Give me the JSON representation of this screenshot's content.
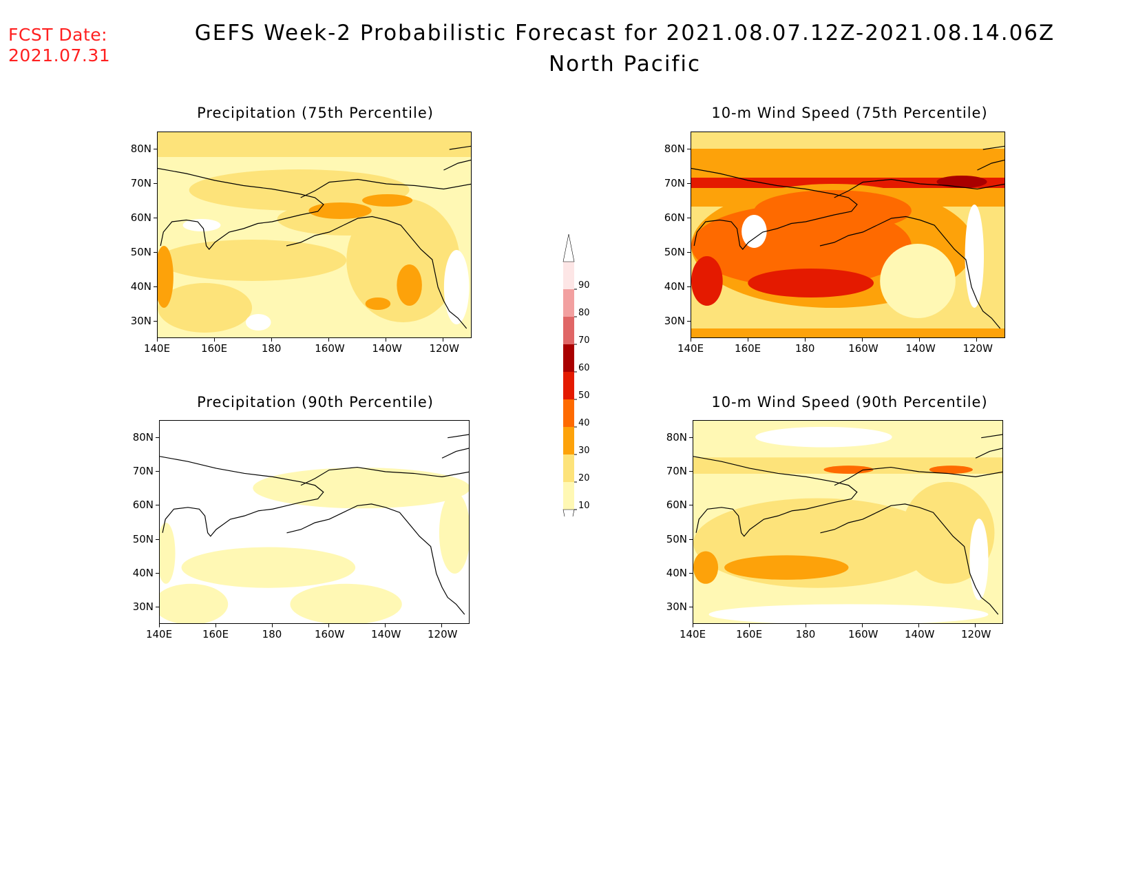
{
  "header": {
    "fcst_label": "FCST Date:",
    "fcst_date": "2021.07.31",
    "title_line1": "GEFS Week-2 Probabilistic Forecast for 2021.08.07.12Z-2021.08.14.06Z",
    "title_line2": "North Pacific"
  },
  "panels": [
    {
      "title": "Precipitation (75th Percentile)",
      "field": "precip75"
    },
    {
      "title": "10-m Wind Speed (75th Percentile)",
      "field": "wind75"
    },
    {
      "title": "Precipitation (90th Percentile)",
      "field": "precip90"
    },
    {
      "title": "10-m Wind Speed (90th Percentile)",
      "field": "wind90"
    }
  ],
  "axes": {
    "lon_labels": [
      "140E",
      "160E",
      "180",
      "160W",
      "140W",
      "120W"
    ],
    "lat_labels": [
      "80N",
      "70N",
      "60N",
      "50N",
      "40N",
      "30N"
    ]
  },
  "colorbar": {
    "levels": [
      "10",
      "20",
      "30",
      "40",
      "50",
      "60",
      "70",
      "80",
      "90"
    ],
    "colors": [
      "#fff8b4",
      "#fde37a",
      "#fda20a",
      "#fe6a00",
      "#e41a00",
      "#a90000",
      "#e06666",
      "#f2a0a0",
      "#fde6e6"
    ]
  },
  "map_colors": {
    "coastline": "#000000",
    "background": "#ffffff"
  }
}
